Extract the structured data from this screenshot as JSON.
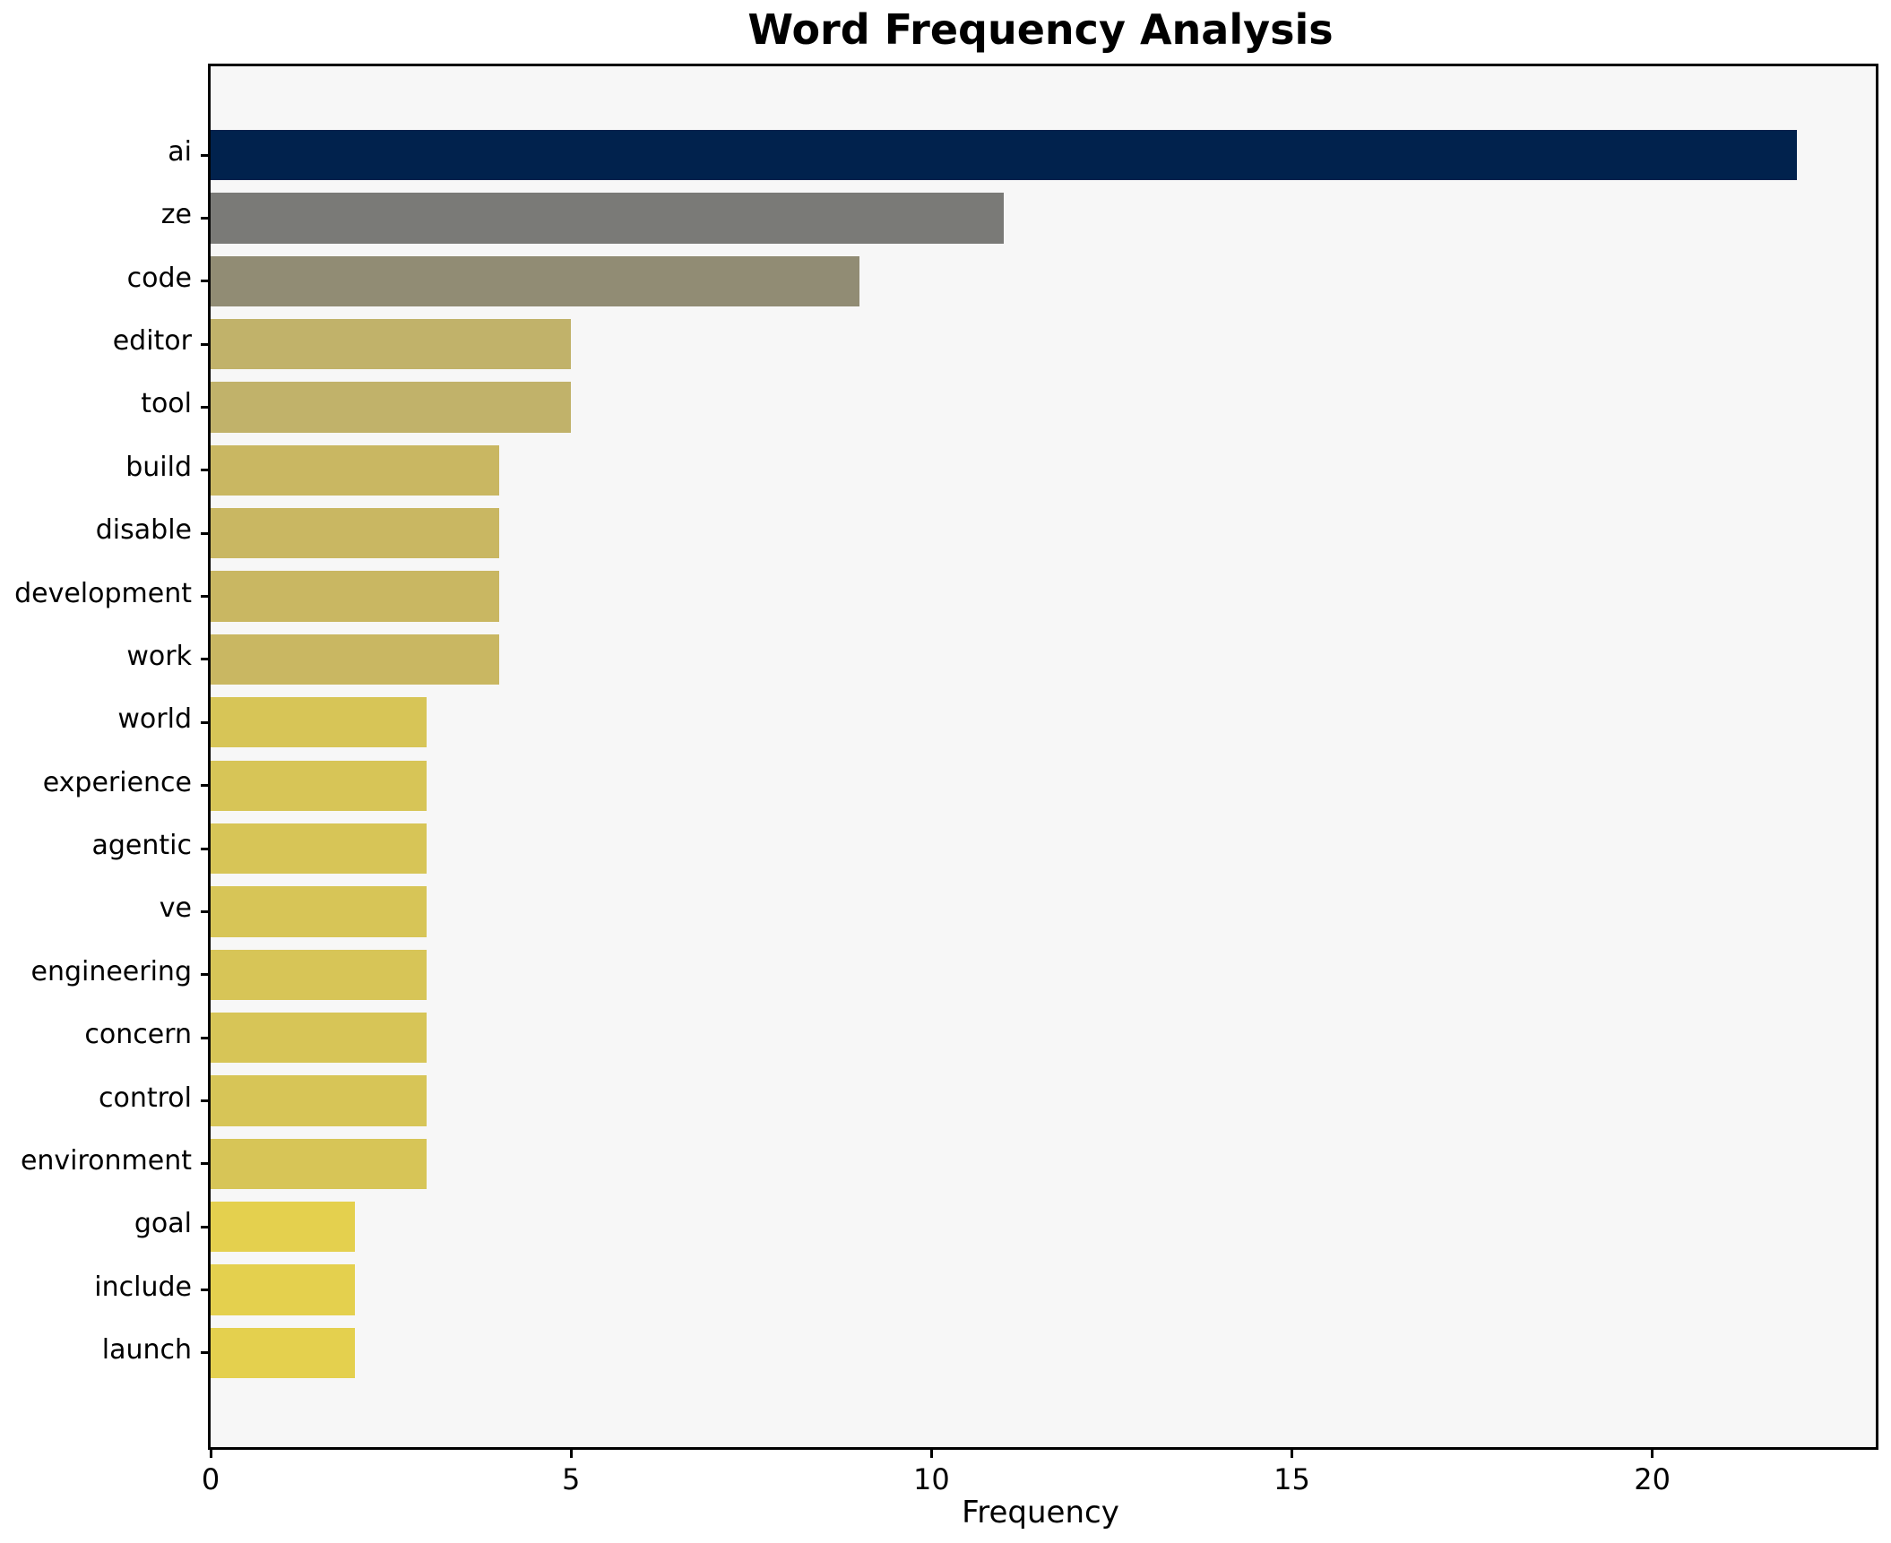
{
  "title": "Word Frequency Analysis",
  "chart_data": {
    "type": "bar",
    "orientation": "horizontal",
    "title": "Word Frequency Analysis",
    "xlabel": "Frequency",
    "ylabel": "",
    "categories": [
      "ai",
      "ze",
      "code",
      "editor",
      "tool",
      "build",
      "disable",
      "development",
      "work",
      "world",
      "experience",
      "agentic",
      "ve",
      "engineering",
      "concern",
      "control",
      "environment",
      "goal",
      "include",
      "launch"
    ],
    "values": [
      22,
      11,
      9,
      5,
      5,
      4,
      4,
      4,
      4,
      3,
      3,
      3,
      3,
      3,
      3,
      3,
      3,
      2,
      2,
      2
    ],
    "bar_colors": [
      "#01224d",
      "#7a7a77",
      "#918c74",
      "#c1b26a",
      "#c1b26a",
      "#c9b762",
      "#c9b762",
      "#c9b762",
      "#c9b762",
      "#d7c557",
      "#d7c557",
      "#d7c557",
      "#d7c557",
      "#d7c557",
      "#d7c557",
      "#d7c557",
      "#d7c557",
      "#e4d04e",
      "#e4d04e",
      "#e4d04e"
    ],
    "x_ticks": [
      0,
      5,
      10,
      15,
      20
    ],
    "x_tick_labels": [
      "0",
      "5",
      "10",
      "15",
      "20"
    ],
    "xlim": [
      0,
      23.1
    ],
    "grid": false,
    "legend": "none",
    "plot_background": "#f7f7f7",
    "figure_background": "#ffffff",
    "spine_color": "#000000"
  }
}
